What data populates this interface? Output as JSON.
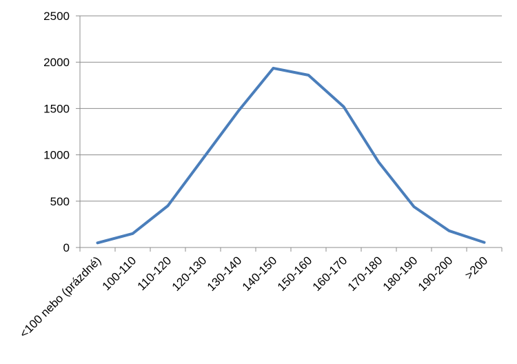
{
  "chart_data": {
    "type": "line",
    "title": "",
    "xlabel": "",
    "ylabel": "",
    "categories": [
      "<100 nebo (prázdné)",
      "100-110",
      "110-120",
      "120-130",
      "130-140",
      "140-150",
      "150-160",
      "160-170",
      "170-180",
      "180-190",
      "190-200",
      ">200"
    ],
    "series": [
      {
        "color": "#4a7ebb",
        "values": [
          50,
          150,
          450,
          960,
          1470,
          1935,
          1860,
          1520,
          920,
          440,
          180,
          55
        ]
      }
    ],
    "ylim": [
      0,
      2500
    ],
    "yticks": [
      0,
      500,
      1000,
      1500,
      2000,
      2500
    ],
    "ytick_labels": [
      "0",
      "500",
      "1000",
      "1500",
      "2000",
      "2500"
    ],
    "grid": true,
    "legend": "none"
  }
}
